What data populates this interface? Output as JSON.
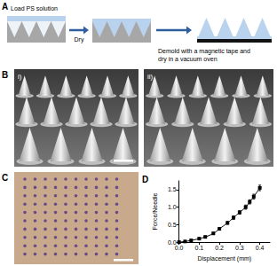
{
  "figure": {
    "panel_labels": [
      "A",
      "B",
      "C",
      "D"
    ],
    "a_texts": {
      "load": "Load PS solution",
      "dry": "Dry",
      "demold": [
        "Demold with a magnetic tape and",
        "dry in a vacuum oven"
      ]
    },
    "b_sublabels": [
      "i)",
      "ii)"
    ]
  },
  "chart_data": {
    "type": "line",
    "x_label": "Displacement (mm)",
    "y_label": "Force/Needle",
    "x": [
      0.0,
      0.03,
      0.06,
      0.1,
      0.13,
      0.17,
      0.2,
      0.24,
      0.27,
      0.3,
      0.33,
      0.35,
      0.37,
      0.4
    ],
    "values": [
      0.0,
      0.02,
      0.05,
      0.1,
      0.15,
      0.25,
      0.38,
      0.55,
      0.7,
      0.85,
      1.0,
      1.15,
      1.3,
      1.55
    ],
    "errors": [
      0.0,
      0.01,
      0.01,
      0.02,
      0.02,
      0.03,
      0.03,
      0.04,
      0.05,
      0.05,
      0.06,
      0.06,
      0.07,
      0.08
    ],
    "color": "#000000",
    "marker": "square",
    "line_style": "solid",
    "grid": false,
    "xlim": [
      0,
      0.45
    ],
    "ylim": [
      0,
      1.75
    ],
    "xticks": [
      {
        "value": 0,
        "label": "0.0"
      },
      {
        "value": 0.1,
        "label": "0.1"
      },
      {
        "value": 0.2,
        "label": "0.2"
      },
      {
        "value": 0.3,
        "label": "0.3"
      },
      {
        "value": 0.4,
        "label": "0.4"
      }
    ],
    "yticks": [
      {
        "value": 0,
        "label": "0.0"
      },
      {
        "value": 0.5,
        "label": "0.5"
      },
      {
        "value": 1,
        "label": "1.0"
      },
      {
        "value": 1.5,
        "label": "1.5"
      }
    ]
  }
}
